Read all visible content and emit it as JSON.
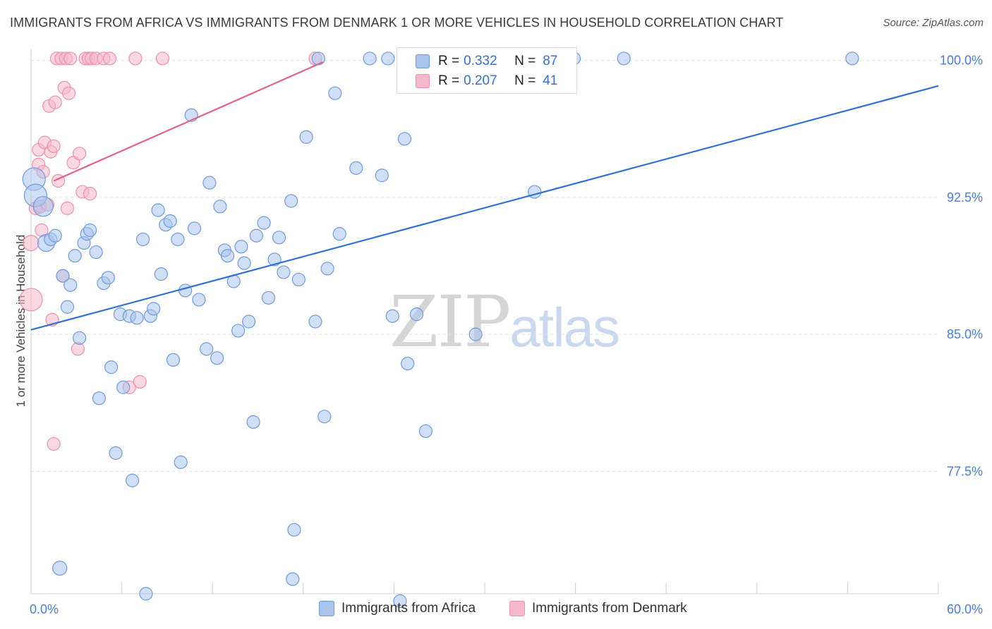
{
  "header": {
    "title": "IMMIGRANTS FROM AFRICA VS IMMIGRANTS FROM DENMARK 1 OR MORE VEHICLES IN HOUSEHOLD CORRELATION CHART",
    "source": "Source: ZipAtlas.com"
  },
  "watermark": {
    "zip": "ZIP",
    "atlas": "atlas"
  },
  "legend": {
    "africa": {
      "r_label": "R =",
      "r_value": "0.332",
      "n_label": "N =",
      "n_value": "87"
    },
    "denmark": {
      "r_label": "R =",
      "r_value": "0.207",
      "n_label": "N =",
      "n_value": "41"
    }
  },
  "bottom_legend": {
    "africa": "Immigrants from Africa",
    "denmark": "Immigrants from Denmark"
  },
  "colors": {
    "africa_fill": "#a9c4ec",
    "africa_stroke": "#6f9ad9",
    "africa_line": "#2f72d0",
    "denmark_fill": "#f6b8cb",
    "denmark_stroke": "#ec8fac",
    "denmark_line": "#e0618a",
    "tick_text": "#4a7fd0",
    "grid": "#e3e3e3"
  },
  "chart_data": {
    "type": "scatter",
    "title": "IMMIGRANTS FROM AFRICA VS IMMIGRANTS FROM DENMARK 1 OR MORE VEHICLES IN HOUSEHOLD CORRELATION CHART",
    "xlabel": "",
    "ylabel": "1 or more Vehicles in Household",
    "xlim": [
      0,
      60
    ],
    "ylim": [
      70.8,
      100.6
    ],
    "x_ticks": [
      0,
      60
    ],
    "x_tick_labels": [
      "0.0%",
      "60.0%"
    ],
    "y_ticks": [
      77.5,
      85.0,
      92.5,
      100.0
    ],
    "y_tick_labels": [
      "77.5%",
      "85.0%",
      "92.5%",
      "100.0%"
    ],
    "grid": true,
    "legend_position": "top-center",
    "series": [
      {
        "name": "Immigrants from Africa",
        "r": 0.332,
        "n": 87,
        "trend": {
          "x": [
            0,
            60
          ],
          "y": [
            85.25,
            98.6
          ]
        },
        "points": [
          {
            "x": 0.2,
            "y": 93.5,
            "s": 16
          },
          {
            "x": 0.3,
            "y": 92.6,
            "s": 16
          },
          {
            "x": 0.8,
            "y": 92.0,
            "s": 14
          },
          {
            "x": 1.0,
            "y": 90.0,
            "s": 12
          },
          {
            "x": 1.3,
            "y": 90.2,
            "s": 9
          },
          {
            "x": 1.6,
            "y": 90.4,
            "s": 9
          },
          {
            "x": 2.1,
            "y": 88.2,
            "s": 9
          },
          {
            "x": 2.4,
            "y": 86.5,
            "s": 9
          },
          {
            "x": 2.6,
            "y": 87.7,
            "s": 9
          },
          {
            "x": 2.9,
            "y": 89.3,
            "s": 9
          },
          {
            "x": 3.2,
            "y": 84.8,
            "s": 9
          },
          {
            "x": 3.5,
            "y": 90.0,
            "s": 9
          },
          {
            "x": 3.7,
            "y": 90.5,
            "s": 9
          },
          {
            "x": 3.9,
            "y": 90.7,
            "s": 9
          },
          {
            "x": 4.3,
            "y": 89.5,
            "s": 9
          },
          {
            "x": 4.5,
            "y": 81.5,
            "s": 9
          },
          {
            "x": 4.8,
            "y": 87.8,
            "s": 9
          },
          {
            "x": 5.1,
            "y": 88.1,
            "s": 9
          },
          {
            "x": 5.3,
            "y": 83.2,
            "s": 9
          },
          {
            "x": 5.6,
            "y": 78.5,
            "s": 9
          },
          {
            "x": 5.9,
            "y": 86.1,
            "s": 9
          },
          {
            "x": 6.1,
            "y": 82.1,
            "s": 9
          },
          {
            "x": 6.5,
            "y": 86.0,
            "s": 9
          },
          {
            "x": 6.7,
            "y": 77.0,
            "s": 9
          },
          {
            "x": 7.0,
            "y": 85.9,
            "s": 9
          },
          {
            "x": 7.4,
            "y": 90.2,
            "s": 9
          },
          {
            "x": 7.6,
            "y": 70.8,
            "s": 9
          },
          {
            "x": 7.9,
            "y": 86.0,
            "s": 9
          },
          {
            "x": 8.1,
            "y": 86.4,
            "s": 9
          },
          {
            "x": 8.4,
            "y": 91.8,
            "s": 9
          },
          {
            "x": 8.6,
            "y": 88.3,
            "s": 9
          },
          {
            "x": 8.9,
            "y": 91.0,
            "s": 9
          },
          {
            "x": 9.2,
            "y": 91.2,
            "s": 9
          },
          {
            "x": 9.4,
            "y": 83.6,
            "s": 9
          },
          {
            "x": 9.7,
            "y": 90.2,
            "s": 9
          },
          {
            "x": 9.9,
            "y": 78.0,
            "s": 9
          },
          {
            "x": 10.2,
            "y": 87.4,
            "s": 9
          },
          {
            "x": 10.8,
            "y": 90.8,
            "s": 9
          },
          {
            "x": 10.6,
            "y": 97.0,
            "s": 9
          },
          {
            "x": 11.1,
            "y": 86.9,
            "s": 9
          },
          {
            "x": 11.6,
            "y": 84.2,
            "s": 9
          },
          {
            "x": 11.8,
            "y": 93.3,
            "s": 9
          },
          {
            "x": 12.3,
            "y": 83.7,
            "s": 9
          },
          {
            "x": 12.5,
            "y": 92.0,
            "s": 9
          },
          {
            "x": 12.8,
            "y": 89.6,
            "s": 9
          },
          {
            "x": 13.0,
            "y": 89.3,
            "s": 9
          },
          {
            "x": 13.4,
            "y": 87.9,
            "s": 9
          },
          {
            "x": 13.7,
            "y": 85.2,
            "s": 9
          },
          {
            "x": 13.9,
            "y": 89.8,
            "s": 9
          },
          {
            "x": 14.1,
            "y": 88.9,
            "s": 9
          },
          {
            "x": 14.4,
            "y": 85.7,
            "s": 9
          },
          {
            "x": 14.7,
            "y": 80.2,
            "s": 9
          },
          {
            "x": 14.9,
            "y": 90.4,
            "s": 9
          },
          {
            "x": 15.4,
            "y": 91.1,
            "s": 9
          },
          {
            "x": 15.7,
            "y": 87.0,
            "s": 9
          },
          {
            "x": 16.1,
            "y": 89.1,
            "s": 9
          },
          {
            "x": 16.4,
            "y": 90.3,
            "s": 9
          },
          {
            "x": 16.7,
            "y": 88.4,
            "s": 9
          },
          {
            "x": 17.2,
            "y": 92.3,
            "s": 9
          },
          {
            "x": 17.4,
            "y": 74.3,
            "s": 9
          },
          {
            "x": 17.7,
            "y": 88.0,
            "s": 9
          },
          {
            "x": 18.2,
            "y": 95.8,
            "s": 9
          },
          {
            "x": 17.3,
            "y": 71.6,
            "s": 9
          },
          {
            "x": 18.8,
            "y": 85.7,
            "s": 9
          },
          {
            "x": 19.4,
            "y": 80.5,
            "s": 9
          },
          {
            "x": 19.6,
            "y": 88.6,
            "s": 9
          },
          {
            "x": 20.1,
            "y": 98.2,
            "s": 9
          },
          {
            "x": 20.4,
            "y": 90.5,
            "s": 9
          },
          {
            "x": 19.0,
            "y": 100.1,
            "s": 9
          },
          {
            "x": 21.5,
            "y": 94.1,
            "s": 9
          },
          {
            "x": 22.4,
            "y": 100.1,
            "s": 9
          },
          {
            "x": 23.2,
            "y": 93.7,
            "s": 9
          },
          {
            "x": 23.6,
            "y": 100.1,
            "s": 9
          },
          {
            "x": 23.9,
            "y": 86.0,
            "s": 9
          },
          {
            "x": 24.4,
            "y": 70.4,
            "s": 9
          },
          {
            "x": 24.7,
            "y": 95.7,
            "s": 9
          },
          {
            "x": 24.9,
            "y": 83.4,
            "s": 9
          },
          {
            "x": 25.5,
            "y": 86.1,
            "s": 9
          },
          {
            "x": 26.1,
            "y": 79.7,
            "s": 9
          },
          {
            "x": 29.4,
            "y": 85.0,
            "s": 9
          },
          {
            "x": 32.5,
            "y": 100.1,
            "s": 9
          },
          {
            "x": 33.3,
            "y": 92.8,
            "s": 9
          },
          {
            "x": 35.9,
            "y": 100.1,
            "s": 9
          },
          {
            "x": 39.2,
            "y": 100.1,
            "s": 9
          },
          {
            "x": 54.3,
            "y": 100.1,
            "s": 9
          },
          {
            "x": 1.9,
            "y": 72.2,
            "s": 10
          },
          {
            "x": 8.0,
            "y": 72.5,
            "s": 1
          }
        ]
      },
      {
        "name": "Immigrants from Denmark",
        "r": 0.207,
        "n": 41,
        "trend": {
          "x": [
            1.5,
            19.3
          ],
          "y": [
            93.4,
            99.9
          ]
        },
        "points": [
          {
            "x": 0.0,
            "y": 86.9,
            "s": 16
          },
          {
            "x": 0.0,
            "y": 90.0,
            "s": 11
          },
          {
            "x": 0.3,
            "y": 91.9,
            "s": 9
          },
          {
            "x": 0.5,
            "y": 94.3,
            "s": 9
          },
          {
            "x": 0.5,
            "y": 95.1,
            "s": 9
          },
          {
            "x": 0.6,
            "y": 92.0,
            "s": 9
          },
          {
            "x": 0.8,
            "y": 93.9,
            "s": 9
          },
          {
            "x": 0.9,
            "y": 95.5,
            "s": 9
          },
          {
            "x": 0.7,
            "y": 90.7,
            "s": 9
          },
          {
            "x": 1.1,
            "y": 92.1,
            "s": 9
          },
          {
            "x": 1.2,
            "y": 97.5,
            "s": 9
          },
          {
            "x": 1.3,
            "y": 95.0,
            "s": 9
          },
          {
            "x": 1.4,
            "y": 85.8,
            "s": 9
          },
          {
            "x": 1.5,
            "y": 95.3,
            "s": 9
          },
          {
            "x": 1.6,
            "y": 97.7,
            "s": 9
          },
          {
            "x": 1.5,
            "y": 79.0,
            "s": 9
          },
          {
            "x": 1.7,
            "y": 100.1,
            "s": 9
          },
          {
            "x": 1.8,
            "y": 93.4,
            "s": 9
          },
          {
            "x": 2.0,
            "y": 100.1,
            "s": 9
          },
          {
            "x": 2.1,
            "y": 88.2,
            "s": 9
          },
          {
            "x": 2.2,
            "y": 98.5,
            "s": 9
          },
          {
            "x": 2.3,
            "y": 100.1,
            "s": 9
          },
          {
            "x": 2.4,
            "y": 91.9,
            "s": 9
          },
          {
            "x": 2.5,
            "y": 98.2,
            "s": 9
          },
          {
            "x": 2.6,
            "y": 100.1,
            "s": 9
          },
          {
            "x": 2.8,
            "y": 94.4,
            "s": 9
          },
          {
            "x": 3.1,
            "y": 84.2,
            "s": 9
          },
          {
            "x": 3.2,
            "y": 94.9,
            "s": 9
          },
          {
            "x": 3.4,
            "y": 92.8,
            "s": 9
          },
          {
            "x": 3.6,
            "y": 100.1,
            "s": 9
          },
          {
            "x": 3.8,
            "y": 100.1,
            "s": 9
          },
          {
            "x": 3.9,
            "y": 92.7,
            "s": 9
          },
          {
            "x": 4.0,
            "y": 100.1,
            "s": 9
          },
          {
            "x": 4.3,
            "y": 100.1,
            "s": 9
          },
          {
            "x": 4.8,
            "y": 100.1,
            "s": 9
          },
          {
            "x": 5.2,
            "y": 100.1,
            "s": 9
          },
          {
            "x": 6.5,
            "y": 82.1,
            "s": 9
          },
          {
            "x": 7.2,
            "y": 82.4,
            "s": 9
          },
          {
            "x": 6.9,
            "y": 100.1,
            "s": 9
          },
          {
            "x": 8.7,
            "y": 100.1,
            "s": 9
          },
          {
            "x": 18.8,
            "y": 100.1,
            "s": 9
          }
        ]
      }
    ]
  }
}
